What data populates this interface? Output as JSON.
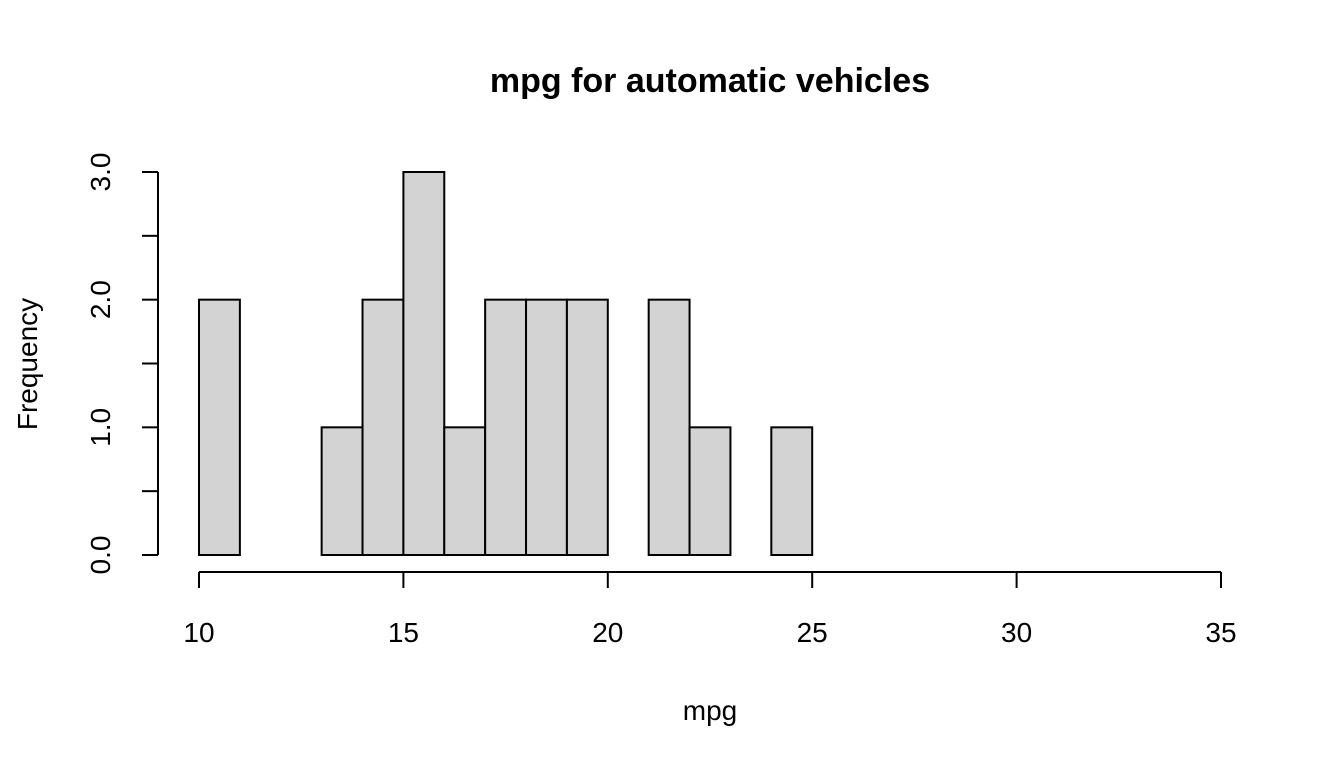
{
  "chart_data": {
    "type": "bar",
    "title": "mpg for automatic vehicles",
    "xlabel": "mpg",
    "ylabel": "Frequency",
    "bins": [
      {
        "from": 10,
        "to": 11,
        "count": 2
      },
      {
        "from": 11,
        "to": 12,
        "count": 0
      },
      {
        "from": 12,
        "to": 13,
        "count": 0
      },
      {
        "from": 13,
        "to": 14,
        "count": 1
      },
      {
        "from": 14,
        "to": 15,
        "count": 2
      },
      {
        "from": 15,
        "to": 16,
        "count": 3
      },
      {
        "from": 16,
        "to": 17,
        "count": 1
      },
      {
        "from": 17,
        "to": 18,
        "count": 2
      },
      {
        "from": 18,
        "to": 19,
        "count": 2
      },
      {
        "from": 19,
        "to": 20,
        "count": 2
      },
      {
        "from": 20,
        "to": 21,
        "count": 0
      },
      {
        "from": 21,
        "to": 22,
        "count": 2
      },
      {
        "from": 22,
        "to": 23,
        "count": 1
      },
      {
        "from": 23,
        "to": 24,
        "count": 0
      },
      {
        "from": 24,
        "to": 25,
        "count": 1
      }
    ],
    "xlim": [
      10,
      35
    ],
    "ylim": [
      0,
      3
    ],
    "x_ticks": [
      10,
      15,
      20,
      25,
      30,
      35
    ],
    "x_tick_labels": [
      "10",
      "15",
      "20",
      "25",
      "30",
      "35"
    ],
    "y_ticks": [
      0,
      0.5,
      1,
      1.5,
      2,
      2.5,
      3
    ],
    "y_tick_labels": [
      "0.0",
      "",
      "1.0",
      "",
      "2.0",
      "",
      "3.0"
    ],
    "bar_fill": "#d3d3d3",
    "bar_stroke": "#000000",
    "grid": false
  }
}
